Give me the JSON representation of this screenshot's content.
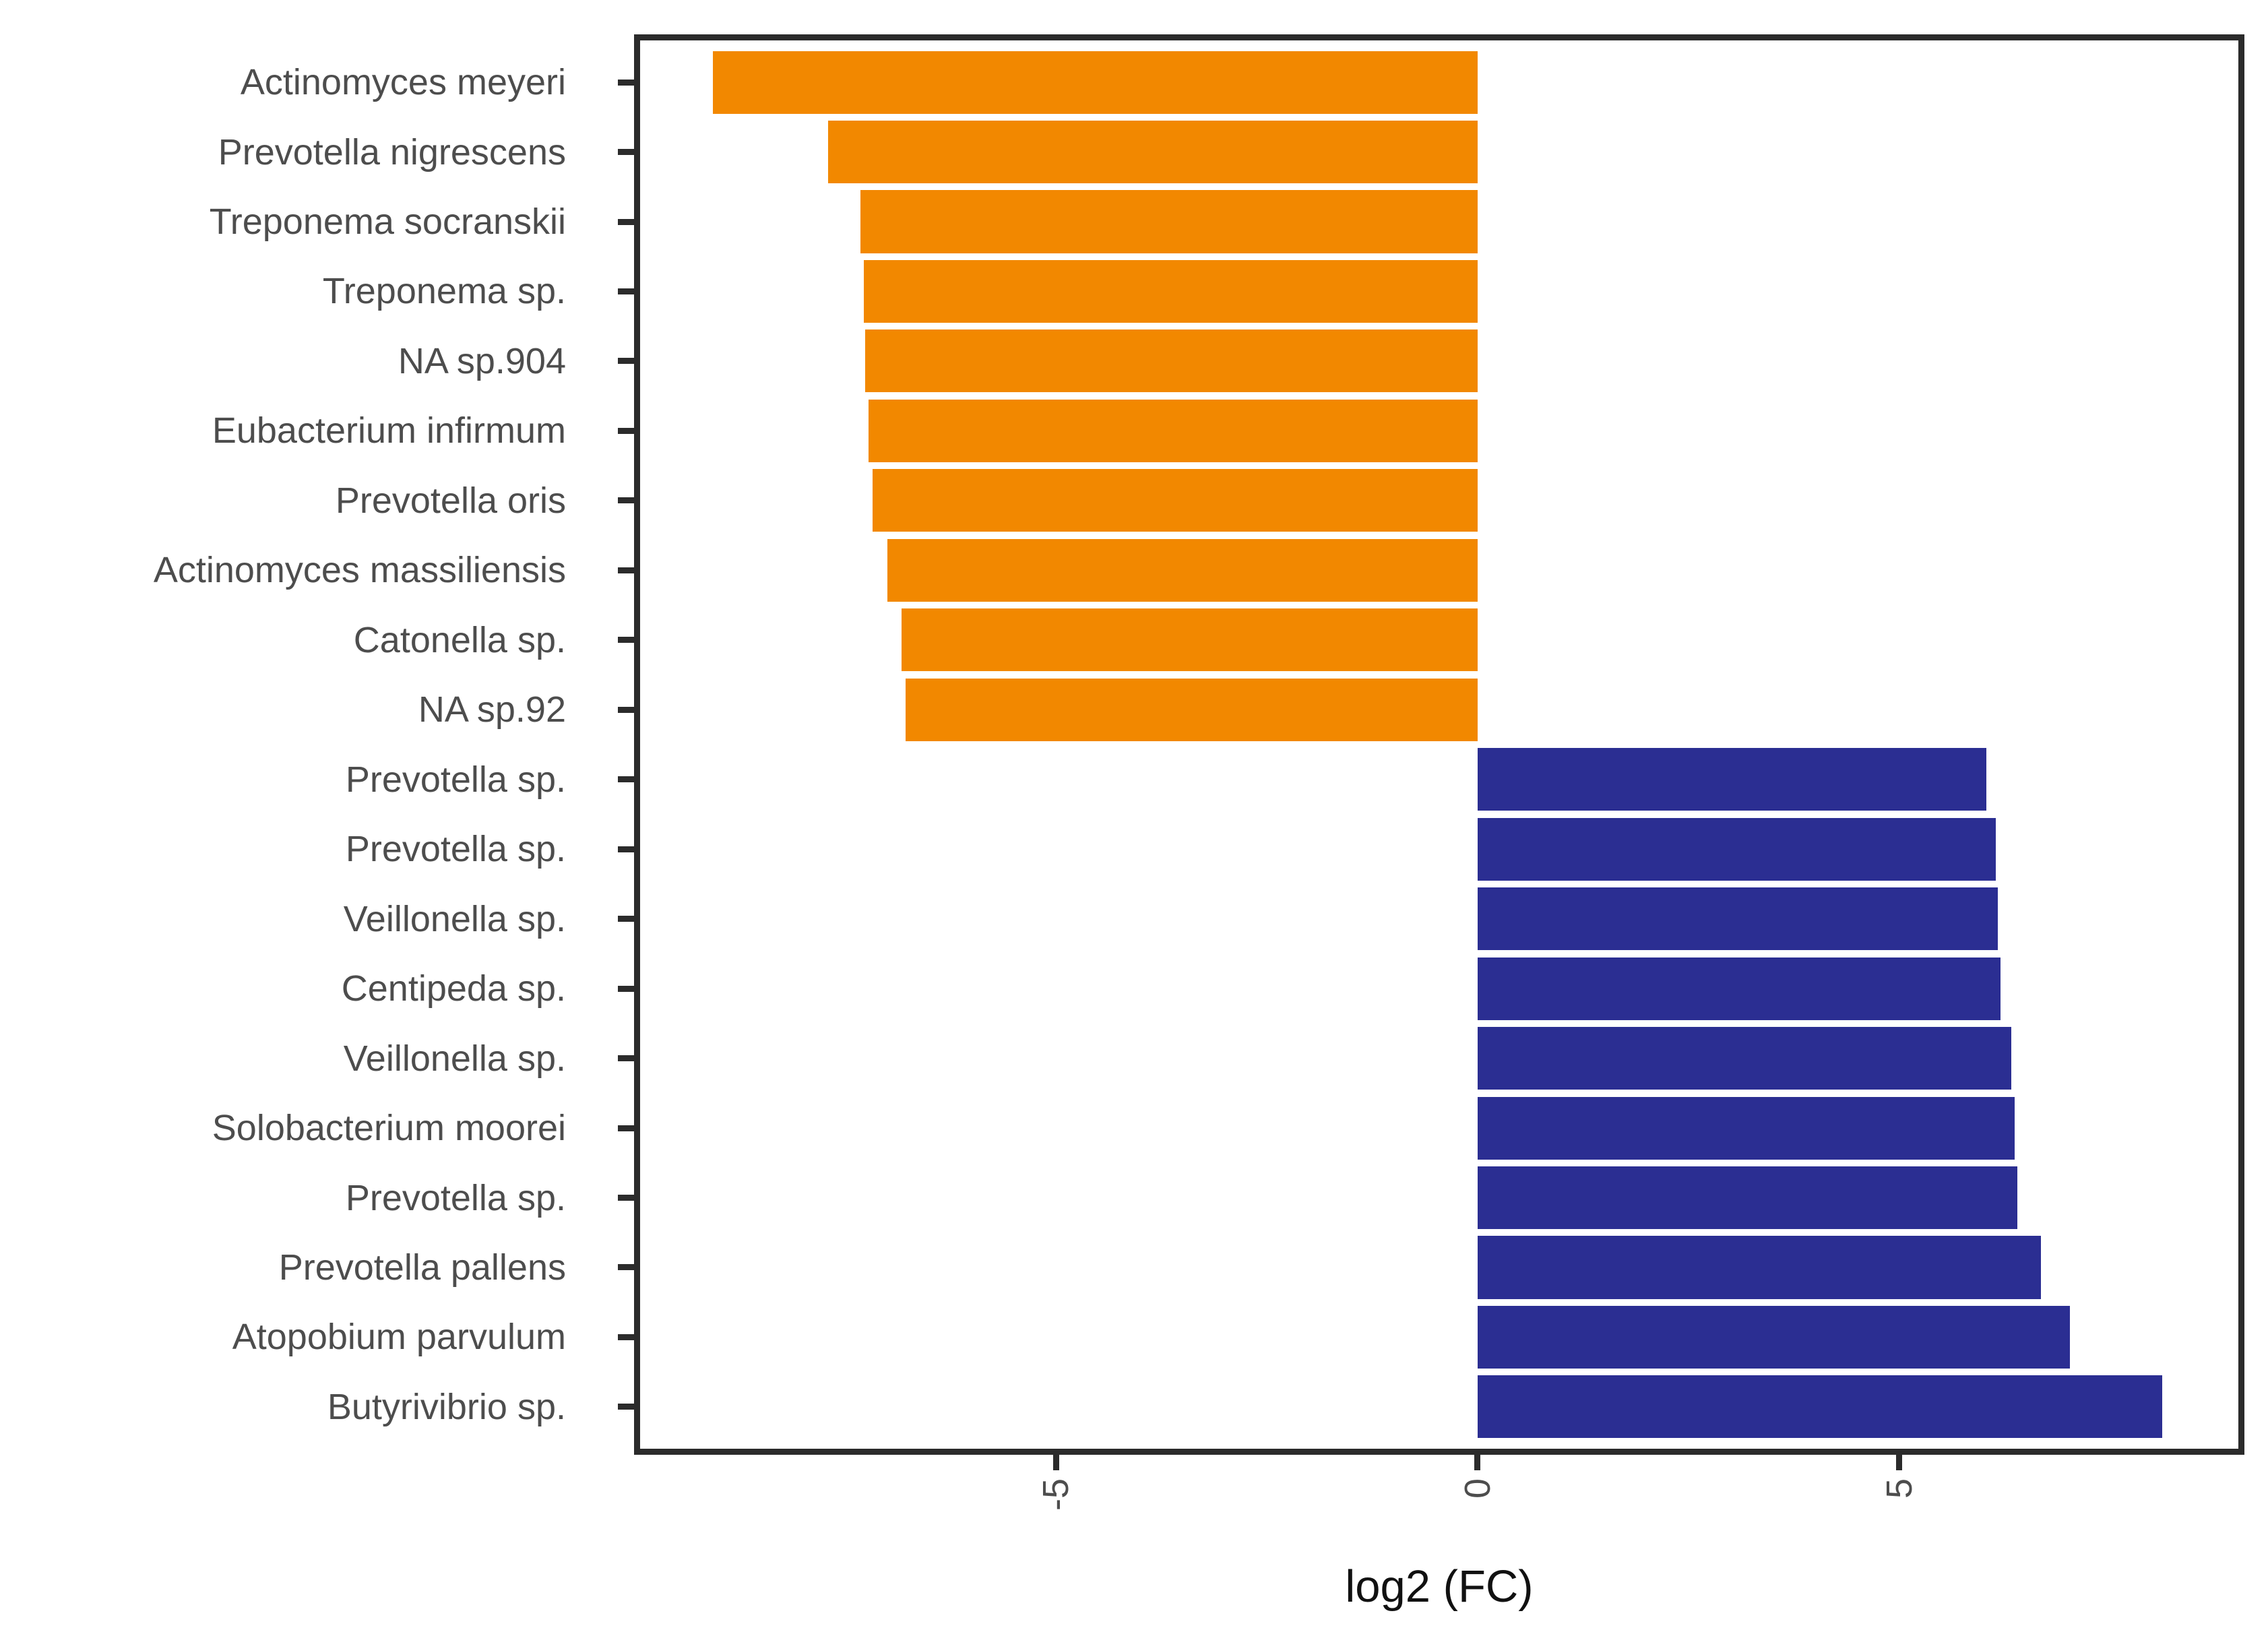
{
  "figure": {
    "background": "#ffffff"
  },
  "chart_data": {
    "type": "bar",
    "orientation": "horizontal",
    "title": "",
    "xlabel": "log2 (FC)",
    "ylabel": "",
    "categories": [
      "Actinomyces meyeri",
      "Prevotella nigrescens",
      "Treponema socranskii",
      "Treponema sp.",
      "NA sp.904",
      "Eubacterium infirmum",
      "Prevotella oris",
      "Actinomyces massiliensis",
      "Catonella sp.",
      "NA sp.92",
      "Prevotella sp.",
      "Prevotella sp.",
      "Veillonella sp.",
      "Centipeda sp.",
      "Veillonella sp.",
      "Solobacterium moorei",
      "Prevotella sp.",
      "Prevotella pallens",
      "Atopobium parvulum",
      "Butyrivibrio sp."
    ],
    "values": [
      -9.07,
      -7.7,
      -7.32,
      -7.28,
      -7.26,
      -7.22,
      -7.17,
      -7.0,
      -6.83,
      -6.78,
      6.03,
      6.14,
      6.17,
      6.2,
      6.33,
      6.37,
      6.4,
      6.68,
      7.02,
      8.12
    ],
    "xlim": [
      -9.93,
      9.02
    ],
    "xticks": [
      -5,
      0,
      5
    ],
    "xtick_labels": [
      "-5",
      "0",
      "5"
    ],
    "bar_width_fraction": 0.9,
    "grid": false,
    "legend": null,
    "colors": {
      "negative_bar": "#F28800",
      "positive_bar": "#2B2E92",
      "panel_border": "#2B2B2B",
      "tick": "#2B2B2B",
      "axis_text": "#4D4D4D",
      "axis_title": "#111111"
    }
  }
}
